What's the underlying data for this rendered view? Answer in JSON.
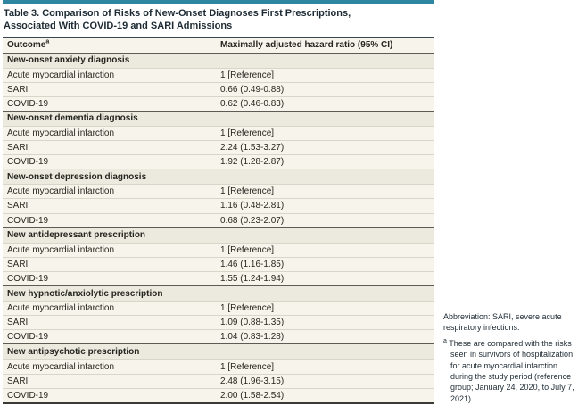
{
  "table": {
    "title_line1": "Table 3. Comparison of Risks of New-Onset Diagnoses First Prescriptions,",
    "title_line2": "Associated With COVID-19 and SARI Admissions",
    "columns": {
      "outcome_label": "Outcome",
      "outcome_footnote_marker": "a",
      "hazard_ratio_label": "Maximally adjusted hazard ratio (95% CI)"
    },
    "sections": [
      {
        "header": "New-onset anxiety diagnosis",
        "rows": [
          {
            "outcome": "Acute myocardial infarction",
            "hr": "1 [Reference]"
          },
          {
            "outcome": "SARI",
            "hr": "0.66 (0.49-0.88)"
          },
          {
            "outcome": "COVID-19",
            "hr": "0.62 (0.46-0.83)"
          }
        ]
      },
      {
        "header": "New-onset dementia diagnosis",
        "rows": [
          {
            "outcome": "Acute myocardial infarction",
            "hr": "1 [Reference]"
          },
          {
            "outcome": "SARI",
            "hr": "2.24 (1.53-3.27)"
          },
          {
            "outcome": "COVID-19",
            "hr": "1.92 (1.28-2.87)"
          }
        ]
      },
      {
        "header": "New-onset depression diagnosis",
        "rows": [
          {
            "outcome": "Acute myocardial infarction",
            "hr": "1 [Reference]"
          },
          {
            "outcome": "SARI",
            "hr": "1.16 (0.48-2.81)"
          },
          {
            "outcome": "COVID-19",
            "hr": "0.68 (0.23-2.07)"
          }
        ]
      },
      {
        "header": "New antidepressant prescription",
        "rows": [
          {
            "outcome": "Acute myocardial infarction",
            "hr": "1 [Reference]"
          },
          {
            "outcome": "SARI",
            "hr": "1.46 (1.16-1.85)"
          },
          {
            "outcome": "COVID-19",
            "hr": "1.55 (1.24-1.94)"
          }
        ]
      },
      {
        "header": "New hypnotic/anxiolytic prescription",
        "rows": [
          {
            "outcome": "Acute myocardial infarction",
            "hr": "1 [Reference]"
          },
          {
            "outcome": "SARI",
            "hr": "1.09 (0.88-1.35)"
          },
          {
            "outcome": "COVID-19",
            "hr": "1.04 (0.83-1.28)"
          }
        ]
      },
      {
        "header": "New antipsychotic prescription",
        "rows": [
          {
            "outcome": "Acute myocardial infarction",
            "hr": "1 [Reference]"
          },
          {
            "outcome": "SARI",
            "hr": "2.48 (1.96-3.15)"
          },
          {
            "outcome": "COVID-19",
            "hr": "2.00 (1.58-2.54)"
          }
        ]
      }
    ]
  },
  "notes": {
    "abbreviation": "Abbreviation: SARI, severe acute respiratory infections.",
    "footnote_marker": "a",
    "footnote_text": "These are compared with the risks seen in survivors of hospitalization for acute myocardial infarction during the study period (reference group; January 24, 2020, to July 7, 2021)."
  },
  "colors": {
    "teal_accent": "#2e86a0",
    "title_text": "#1d2a33",
    "row_background": "#f6f4eb",
    "section_row_background": "#eceade"
  }
}
